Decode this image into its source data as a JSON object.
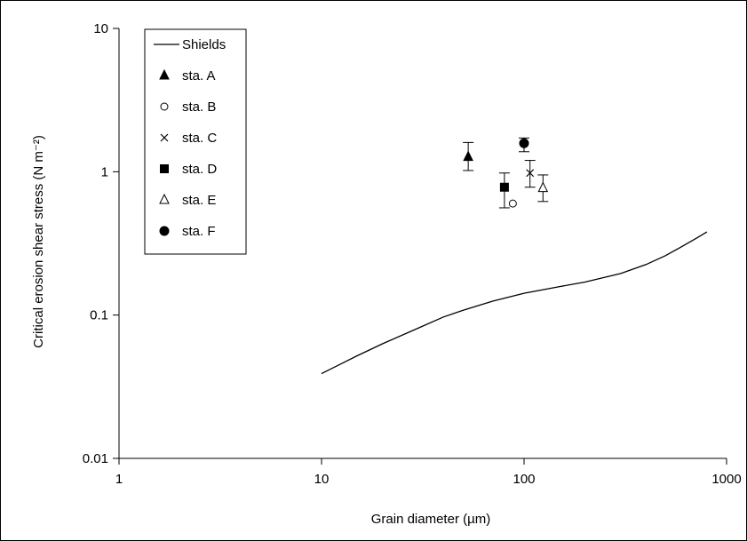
{
  "chart_data": {
    "type": "scatter",
    "xlabel": "Grain diameter (µm)",
    "ylabel": "Critical erosion shear stress (N m⁻²)",
    "xscale": "log",
    "yscale": "log",
    "xlim": [
      1,
      1000
    ],
    "ylim": [
      0.01,
      10
    ],
    "x_ticks": [
      1,
      10,
      100,
      1000
    ],
    "x_tick_labels": [
      "1",
      "10",
      "100",
      "1000"
    ],
    "y_ticks": [
      0.01,
      0.1,
      1,
      10
    ],
    "y_tick_labels": [
      "0.01",
      "0.1",
      "1",
      "10"
    ],
    "grid": false,
    "legend_position": "top-left",
    "shields_curve": {
      "name": "Shields",
      "x": [
        10,
        15,
        20,
        30,
        40,
        50,
        70,
        100,
        150,
        200,
        300,
        400,
        500,
        600,
        700,
        800
      ],
      "y": [
        0.039,
        0.052,
        0.063,
        0.081,
        0.097,
        0.108,
        0.125,
        0.142,
        0.158,
        0.17,
        0.195,
        0.225,
        0.26,
        0.3,
        0.34,
        0.38
      ]
    },
    "series": [
      {
        "name": "sta. A",
        "marker": "triangle-filled",
        "x": 53,
        "y": 1.27,
        "err_low": 1.02,
        "err_high": 1.6
      },
      {
        "name": "sta. B",
        "marker": "circle-open",
        "x": 88,
        "y": 0.6,
        "err_low": null,
        "err_high": null
      },
      {
        "name": "sta. C",
        "marker": "cross",
        "x": 107,
        "y": 0.98,
        "err_low": 0.78,
        "err_high": 1.2
      },
      {
        "name": "sta. D",
        "marker": "square-filled",
        "x": 80,
        "y": 0.78,
        "err_low": 0.56,
        "err_high": 0.98
      },
      {
        "name": "sta. E",
        "marker": "triangle-open",
        "x": 124,
        "y": 0.77,
        "err_low": 0.62,
        "err_high": 0.95
      },
      {
        "name": "sta. F",
        "marker": "circle-filled",
        "x": 100,
        "y": 1.58,
        "err_low": 1.38,
        "err_high": 1.72
      }
    ]
  }
}
